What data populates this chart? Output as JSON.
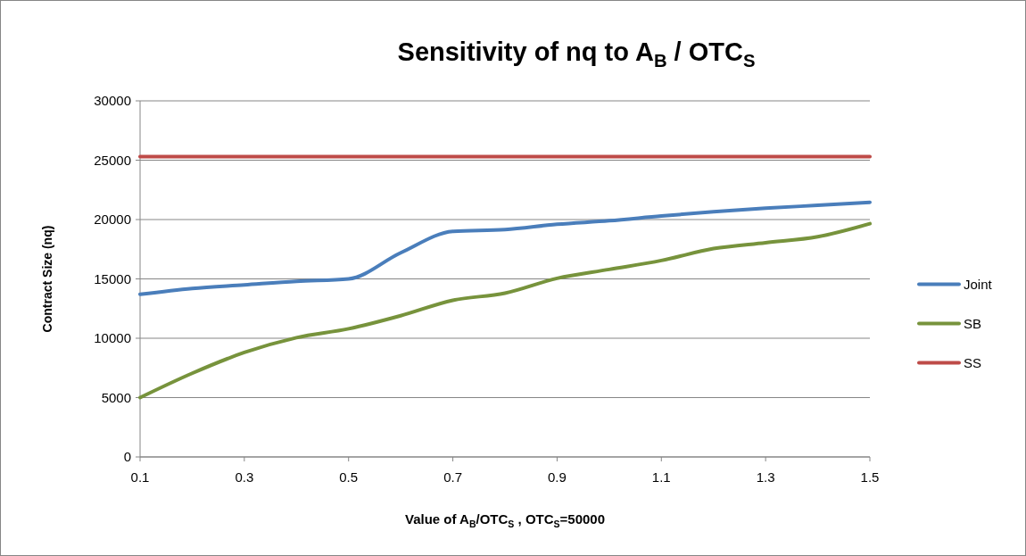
{
  "chart_data": {
    "type": "line",
    "title": "Sensitivity of nq to A$_{B}$ / OTC$_{S}$",
    "xlabel": "Value of A$_{B}$/OTC$_{S}$ , OTC$_{S}$=50000",
    "ylabel": "Contract Size (nq)",
    "x": [
      0.1,
      0.2,
      0.3,
      0.4,
      0.5,
      0.6,
      0.7,
      0.8,
      0.9,
      1.0,
      1.1,
      1.2,
      1.3,
      1.4,
      1.5
    ],
    "series": [
      {
        "name": "Joint",
        "color": "#4a7ebb",
        "values": [
          13700,
          14200,
          14500,
          14800,
          15000,
          17200,
          19000,
          19150,
          19600,
          19900,
          20300,
          20650,
          20950,
          21200,
          21450
        ]
      },
      {
        "name": "SB",
        "color": "#77933c",
        "values": [
          5000,
          7050,
          8800,
          10050,
          10800,
          11900,
          13200,
          13800,
          15050,
          15800,
          16550,
          17550,
          18050,
          18550,
          19650
        ]
      },
      {
        "name": "SS",
        "color": "#be4b48",
        "values": [
          25300,
          25300,
          25300,
          25300,
          25300,
          25300,
          25300,
          25300,
          25300,
          25300,
          25300,
          25300,
          25300,
          25300,
          25300
        ]
      }
    ],
    "xlim": [
      0.1,
      1.5
    ],
    "xticks": [
      0.1,
      0.3,
      0.5,
      0.7,
      0.9,
      1.1,
      1.3,
      1.5
    ],
    "ylim": [
      0,
      30000
    ],
    "yticks": [
      0,
      5000,
      10000,
      15000,
      20000,
      25000,
      30000
    ],
    "grid": "y",
    "legend": "right",
    "marker": "none",
    "line_style": "solid"
  }
}
